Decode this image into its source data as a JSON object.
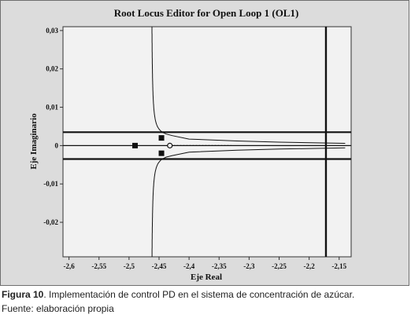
{
  "chart_data": {
    "type": "scatter",
    "title": "Root Locus Editor for Open Loop 1 (OL1)",
    "xlabel": "Eje Real",
    "ylabel": "Eje Imaginario",
    "xlim": [
      -2.61,
      -2.13
    ],
    "ylim": [
      -0.029,
      0.031
    ],
    "x_ticks": [
      -2.6,
      -2.55,
      -2.5,
      -2.45,
      -2.4,
      -2.35,
      -2.3,
      -2.25,
      -2.2,
      -2.15
    ],
    "x_tick_labels": [
      "-2,6",
      "-2,55",
      "-2,5",
      "-2,45",
      "-2,4",
      "-2,35",
      "-2,3",
      "-2,25",
      "-2,2",
      "-2,15"
    ],
    "y_ticks": [
      0.03,
      0.02,
      0.01,
      0,
      -0.01,
      -0.02
    ],
    "y_tick_labels": [
      "0,03",
      "0,02",
      "0,01",
      "0",
      "-0,01",
      "-0,02"
    ],
    "grid": false,
    "markers": {
      "closed_loop_poles": [
        {
          "x": -2.49,
          "y": 0
        },
        {
          "x": -2.446,
          "y": 0.002
        },
        {
          "x": -2.446,
          "y": -0.002
        }
      ],
      "zero": {
        "x": -2.432,
        "y": 0
      }
    },
    "vertical_line_x": -2.172,
    "horizontal_lines_y": [
      0.0035,
      -0.0035
    ],
    "colors": {
      "plot_bg": "#f2f2f2",
      "outer_bg": "#dcdcdc",
      "line": "#111111"
    }
  },
  "caption": {
    "label": "Figura 10",
    "text": ". Implementación de control PD en el sistema de concentración de azúcar.",
    "source": "Fuente: elaboración propia"
  }
}
